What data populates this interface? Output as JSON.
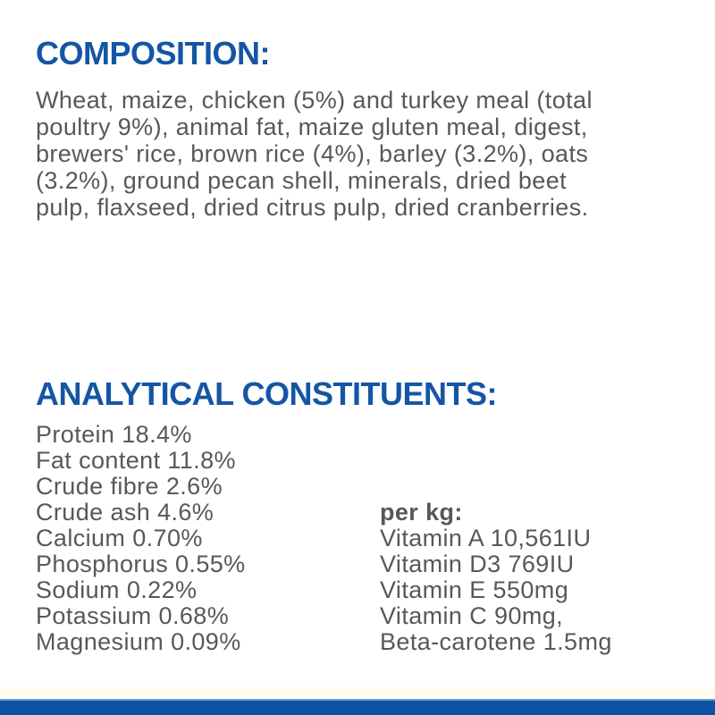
{
  "colors": {
    "heading_blue": "#1456a4",
    "body_gray": "#57585a",
    "bottom_bar_blue": "#0e54a4",
    "bar_highlight": "#6d9ed6",
    "edge_cream": "#fffdf2"
  },
  "composition": {
    "heading": "COMPOSITION:",
    "lines": [
      "Wheat, maize, chicken (5%) and turkey meal (total",
      "poultry 9%), animal fat, maize gluten meal, digest,",
      "brewers' rice, brown rice (4%), barley (3.2%), oats",
      "(3.2%), ground pecan shell, minerals, dried beet",
      "pulp, flaxseed, dried citrus pulp, dried cranberries."
    ]
  },
  "analytical": {
    "heading": "ANALYTICAL CONSTITUENTS:",
    "left_column": [
      "Protein 18.4%",
      "Fat content 11.8%",
      "Crude fibre 2.6%",
      "Crude ash 4.6%",
      "Calcium 0.70%",
      "Phosphorus 0.55%",
      "Sodium 0.22%",
      "Potassium 0.68%",
      "Magnesium 0.09%"
    ],
    "right_column": {
      "header": "per kg:",
      "items": [
        "Vitamin A 10,561IU",
        "Vitamin D3 769IU",
        "Vitamin E 550mg",
        "Vitamin C 90mg,",
        "Beta-carotene 1.5mg"
      ]
    }
  }
}
